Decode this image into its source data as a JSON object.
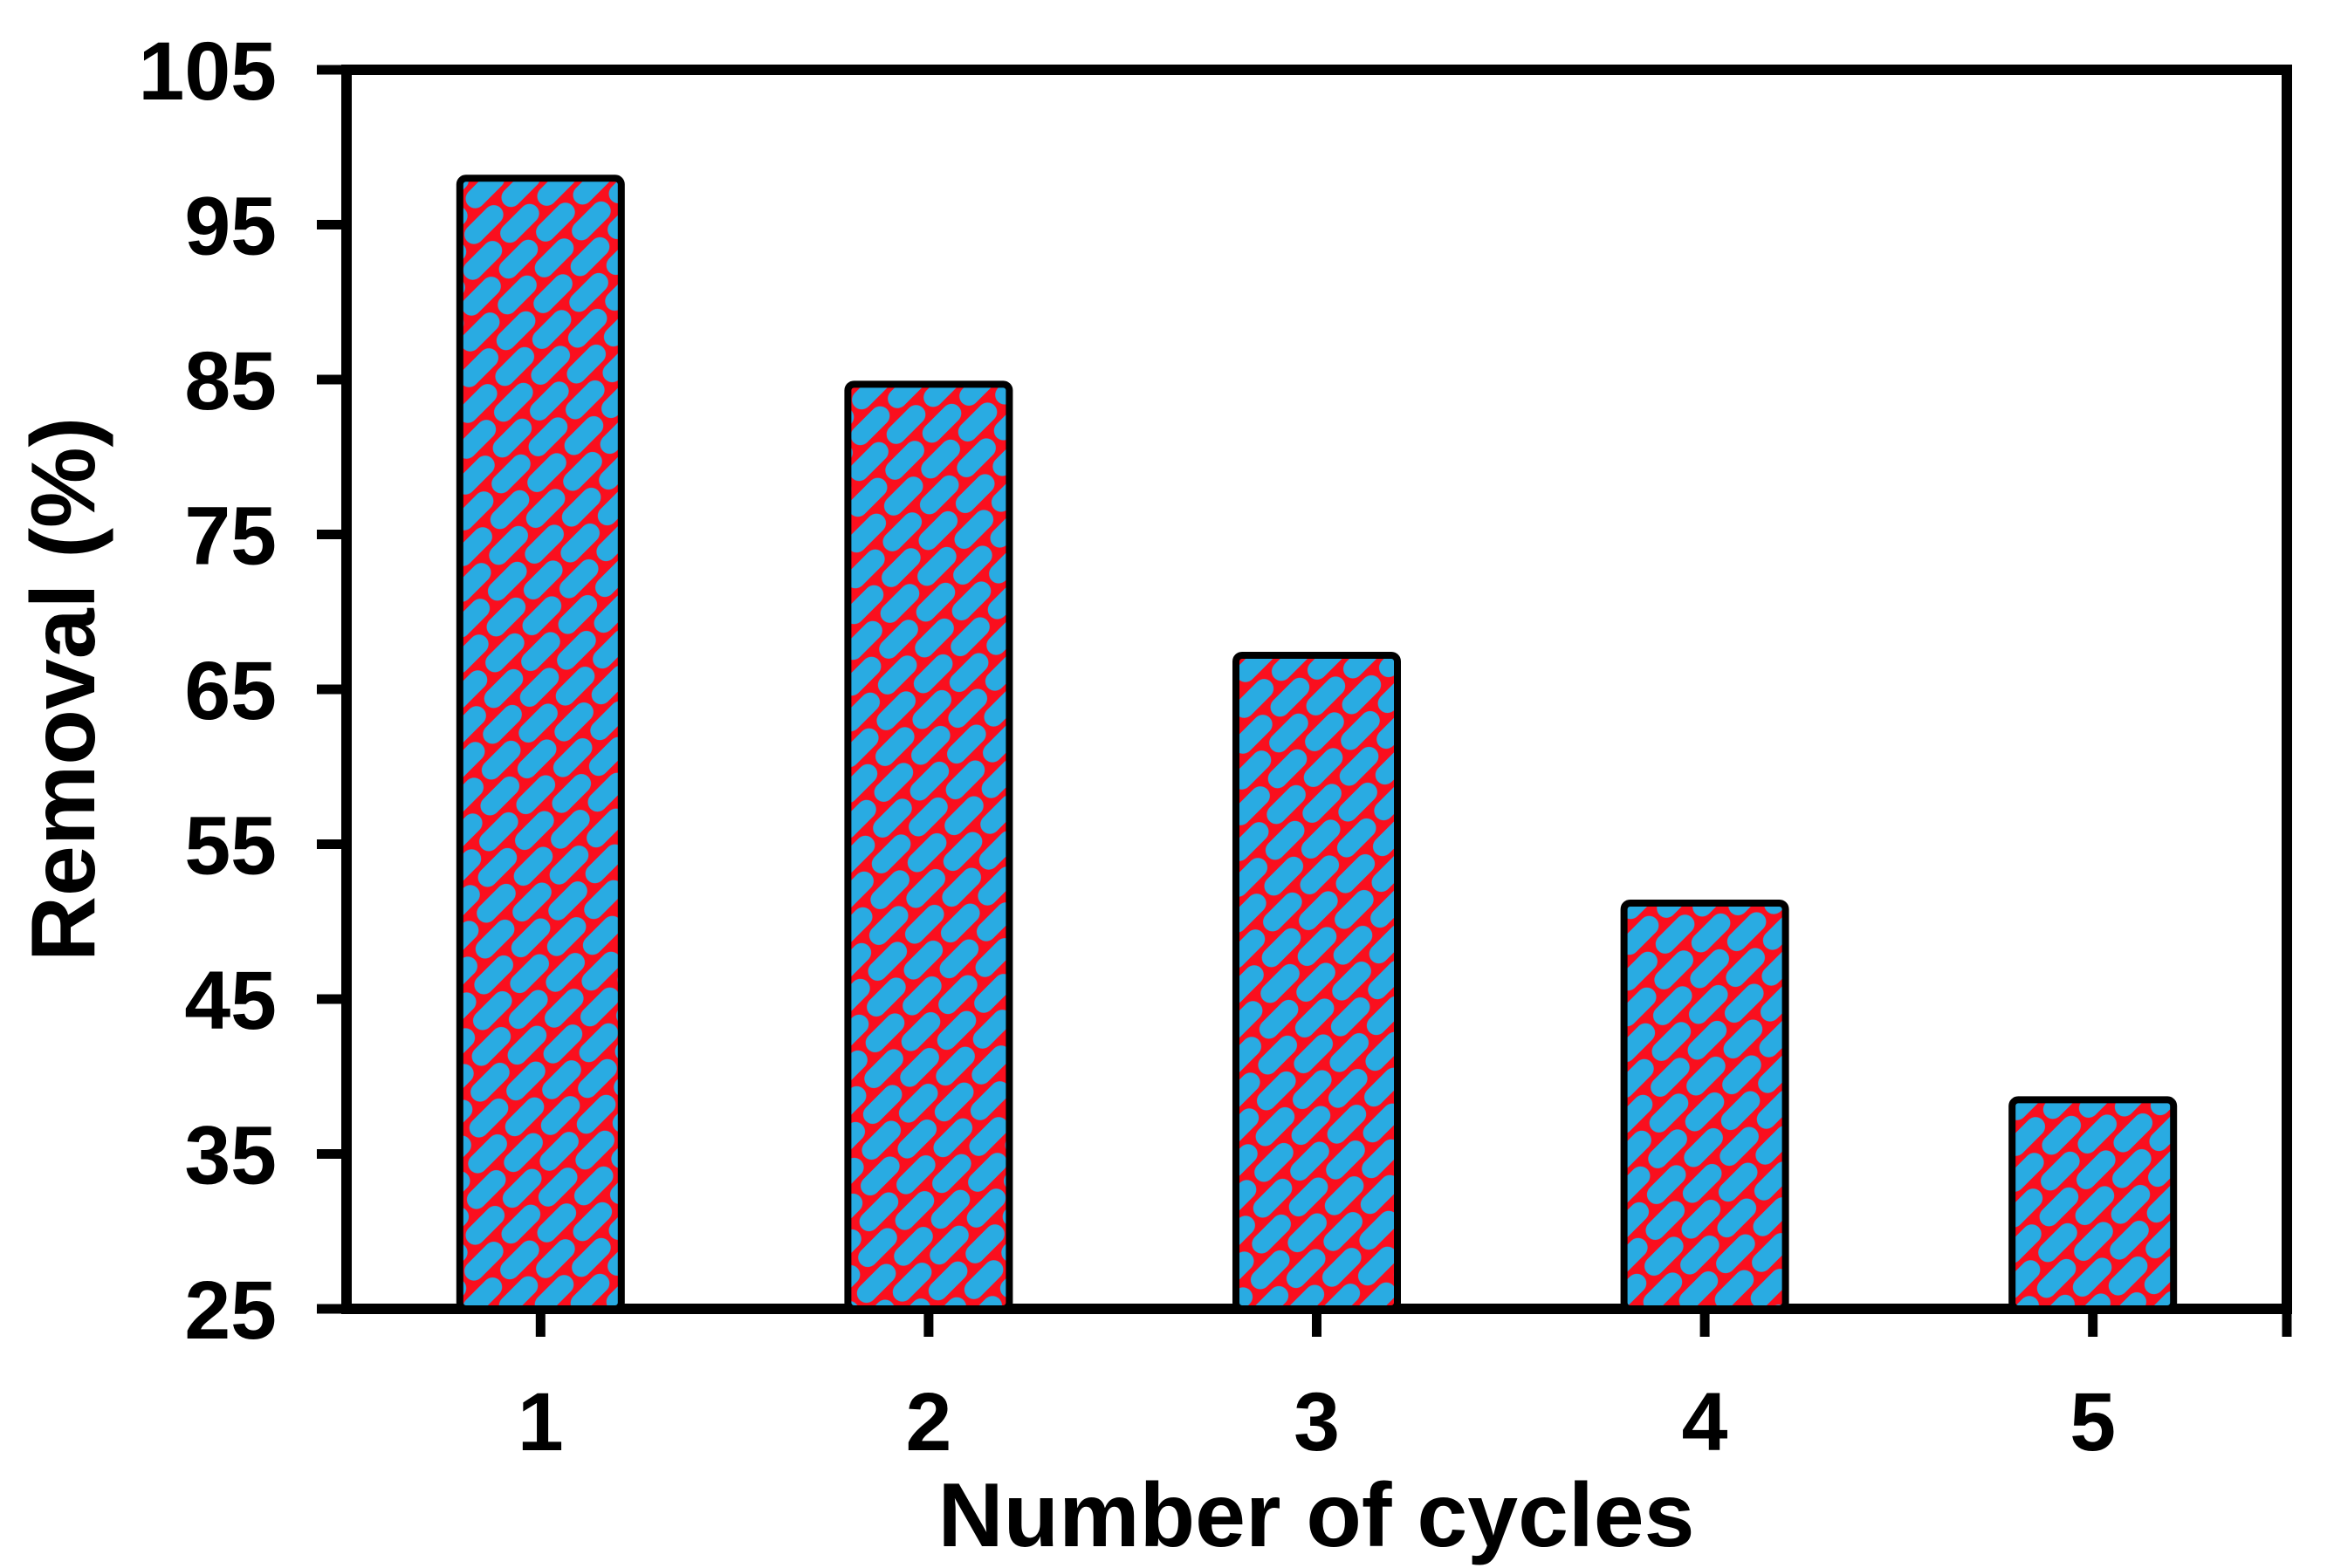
{
  "figure": {
    "background_color": "#ffffff"
  },
  "chart_data": {
    "type": "bar",
    "title": "",
    "categories": [
      "1",
      "2",
      "3",
      "4",
      "5"
    ],
    "values": [
      98,
      84.7,
      67.2,
      51.2,
      38.5
    ],
    "xlabel": "Number of cycles",
    "ylabel": "Removal (%)",
    "ylim": [
      25,
      105
    ],
    "yticks": [
      105,
      95,
      85,
      75,
      65,
      55,
      45,
      35,
      25
    ],
    "grid": false,
    "legend": null,
    "bar_fill_color": "#29ABE2",
    "bar_pattern_color": "#FA0F1E",
    "bar_border_color": "#000000",
    "axis_color": "#000000"
  }
}
